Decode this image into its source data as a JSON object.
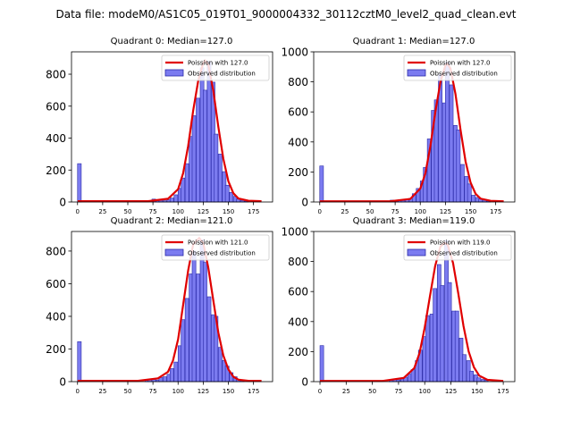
{
  "figure_title": "Data file: modeM0/AS1C05_019T01_9000004332_30112cztM0_level2_quad_clean.evt",
  "colors": {
    "bar_fill": "#7b7bf0",
    "bar_edge": "#2a2aa8",
    "poisson_line": "#e00000"
  },
  "chart_data": [
    {
      "type": "bar",
      "title": "Quadrant 0: Median=127.0",
      "median": 127.0,
      "xlim": [
        -6,
        194
      ],
      "ylim": [
        0,
        940
      ],
      "xticks": [
        0,
        25,
        50,
        75,
        100,
        125,
        150,
        175
      ],
      "yticks": [
        0,
        200,
        400,
        600,
        800
      ],
      "legend": [
        "Poission with 127.0",
        "Observed distribution"
      ],
      "legend_loc": "upper right",
      "bin_width": 3.7,
      "bins": [
        [
          0,
          240
        ],
        [
          74,
          18
        ],
        [
          78,
          15
        ],
        [
          81,
          10
        ],
        [
          85,
          8
        ],
        [
          89,
          14
        ],
        [
          92,
          25
        ],
        [
          96,
          45
        ],
        [
          100,
          85
        ],
        [
          103,
          150
        ],
        [
          107,
          240
        ],
        [
          111,
          410
        ],
        [
          114,
          540
        ],
        [
          118,
          650
        ],
        [
          122,
          840
        ],
        [
          125,
          700
        ],
        [
          129,
          880
        ],
        [
          133,
          750
        ],
        [
          136,
          425
        ],
        [
          140,
          300
        ],
        [
          144,
          190
        ],
        [
          147,
          105
        ],
        [
          151,
          60
        ],
        [
          155,
          35
        ],
        [
          158,
          18
        ],
        [
          162,
          10
        ],
        [
          166,
          5
        ]
      ],
      "poisson": [
        [
          0,
          5
        ],
        [
          70,
          5
        ],
        [
          90,
          20
        ],
        [
          100,
          80
        ],
        [
          105,
          180
        ],
        [
          110,
          350
        ],
        [
          115,
          570
        ],
        [
          120,
          760
        ],
        [
          125,
          870
        ],
        [
          127,
          885
        ],
        [
          130,
          860
        ],
        [
          135,
          700
        ],
        [
          140,
          470
        ],
        [
          145,
          270
        ],
        [
          150,
          130
        ],
        [
          155,
          55
        ],
        [
          160,
          22
        ],
        [
          170,
          8
        ],
        [
          183,
          5
        ]
      ]
    },
    {
      "type": "bar",
      "title": "Quadrant 1: Median=127.0",
      "median": 127.0,
      "xlim": [
        -6,
        194
      ],
      "ylim": [
        0,
        1000
      ],
      "xticks": [
        0,
        25,
        50,
        75,
        100,
        125,
        150,
        175
      ],
      "yticks": [
        0,
        200,
        400,
        600,
        800,
        1000
      ],
      "legend": [
        "Poission with 127.0",
        "Observed distribution"
      ],
      "legend_loc": "upper right",
      "bin_width": 3.7,
      "bins": [
        [
          0,
          240
        ],
        [
          70,
          12
        ],
        [
          74,
          10
        ],
        [
          78,
          15
        ],
        [
          81,
          10
        ],
        [
          85,
          18
        ],
        [
          89,
          25
        ],
        [
          92,
          55
        ],
        [
          96,
          90
        ],
        [
          100,
          140
        ],
        [
          103,
          230
        ],
        [
          107,
          420
        ],
        [
          111,
          610
        ],
        [
          114,
          680
        ],
        [
          118,
          850
        ],
        [
          122,
          660
        ],
        [
          125,
          930
        ],
        [
          129,
          780
        ],
        [
          133,
          510
        ],
        [
          136,
          480
        ],
        [
          140,
          250
        ],
        [
          144,
          170
        ],
        [
          147,
          120
        ],
        [
          151,
          45
        ],
        [
          155,
          30
        ],
        [
          158,
          20
        ],
        [
          162,
          12
        ],
        [
          166,
          6
        ]
      ],
      "poisson": [
        [
          0,
          5
        ],
        [
          70,
          5
        ],
        [
          90,
          20
        ],
        [
          100,
          90
        ],
        [
          105,
          190
        ],
        [
          110,
          370
        ],
        [
          115,
          600
        ],
        [
          120,
          800
        ],
        [
          125,
          910
        ],
        [
          127,
          920
        ],
        [
          130,
          890
        ],
        [
          135,
          720
        ],
        [
          140,
          480
        ],
        [
          145,
          270
        ],
        [
          150,
          130
        ],
        [
          155,
          55
        ],
        [
          160,
          22
        ],
        [
          170,
          8
        ],
        [
          183,
          5
        ]
      ]
    },
    {
      "type": "bar",
      "title": "Quadrant 2: Median=121.0",
      "median": 121.0,
      "xlim": [
        -6,
        194
      ],
      "ylim": [
        0,
        920
      ],
      "xticks": [
        0,
        25,
        50,
        75,
        100,
        125,
        150,
        175
      ],
      "yticks": [
        0,
        200,
        400,
        600,
        800
      ],
      "legend": [
        "Poission with 121.0",
        "Observed distribution"
      ],
      "legend_loc": "upper right",
      "bin_width": 3.7,
      "bins": [
        [
          0,
          245
        ],
        [
          67,
          12
        ],
        [
          70,
          15
        ],
        [
          74,
          18
        ],
        [
          78,
          10
        ],
        [
          81,
          25
        ],
        [
          85,
          30
        ],
        [
          89,
          45
        ],
        [
          92,
          80
        ],
        [
          96,
          120
        ],
        [
          100,
          220
        ],
        [
          103,
          380
        ],
        [
          107,
          510
        ],
        [
          111,
          660
        ],
        [
          114,
          800
        ],
        [
          118,
          660
        ],
        [
          122,
          870
        ],
        [
          125,
          730
        ],
        [
          129,
          520
        ],
        [
          133,
          410
        ],
        [
          136,
          400
        ],
        [
          140,
          210
        ],
        [
          144,
          130
        ],
        [
          147,
          95
        ],
        [
          151,
          55
        ],
        [
          155,
          30
        ],
        [
          158,
          15
        ],
        [
          162,
          8
        ]
      ],
      "poisson": [
        [
          0,
          5
        ],
        [
          60,
          5
        ],
        [
          80,
          20
        ],
        [
          90,
          60
        ],
        [
          95,
          130
        ],
        [
          100,
          260
        ],
        [
          105,
          470
        ],
        [
          110,
          680
        ],
        [
          115,
          840
        ],
        [
          121,
          880
        ],
        [
          125,
          850
        ],
        [
          130,
          700
        ],
        [
          135,
          500
        ],
        [
          140,
          300
        ],
        [
          145,
          160
        ],
        [
          150,
          75
        ],
        [
          155,
          30
        ],
        [
          160,
          12
        ],
        [
          170,
          5
        ],
        [
          183,
          5
        ]
      ]
    },
    {
      "type": "bar",
      "title": "Quadrant 3: Median=119.0",
      "median": 119.0,
      "xlim": [
        -6,
        186
      ],
      "ylim": [
        0,
        1000
      ],
      "xticks": [
        0,
        25,
        50,
        75,
        100,
        125,
        150,
        175
      ],
      "yticks": [
        0,
        200,
        400,
        600,
        800,
        1000
      ],
      "legend": [
        "Poission with 119.0",
        "Observed distribution"
      ],
      "legend_loc": "upper right",
      "bin_width": 3.5,
      "bins": [
        [
          0,
          240
        ],
        [
          66,
          10
        ],
        [
          70,
          15
        ],
        [
          73,
          12
        ],
        [
          77,
          18
        ],
        [
          80,
          30
        ],
        [
          84,
          50
        ],
        [
          87,
          80
        ],
        [
          91,
          140
        ],
        [
          94,
          210
        ],
        [
          98,
          300
        ],
        [
          101,
          440
        ],
        [
          105,
          450
        ],
        [
          108,
          620
        ],
        [
          112,
          780
        ],
        [
          115,
          640
        ],
        [
          119,
          940
        ],
        [
          122,
          660
        ],
        [
          126,
          470
        ],
        [
          129,
          470
        ],
        [
          133,
          290
        ],
        [
          136,
          180
        ],
        [
          140,
          140
        ],
        [
          143,
          70
        ],
        [
          147,
          45
        ],
        [
          150,
          25
        ],
        [
          154,
          15
        ],
        [
          157,
          8
        ]
      ],
      "poisson": [
        [
          0,
          5
        ],
        [
          60,
          5
        ],
        [
          80,
          25
        ],
        [
          90,
          90
        ],
        [
          95,
          190
        ],
        [
          100,
          360
        ],
        [
          105,
          570
        ],
        [
          110,
          770
        ],
        [
          115,
          900
        ],
        [
          119,
          925
        ],
        [
          122,
          910
        ],
        [
          127,
          790
        ],
        [
          132,
          590
        ],
        [
          137,
          370
        ],
        [
          142,
          200
        ],
        [
          147,
          95
        ],
        [
          152,
          40
        ],
        [
          160,
          12
        ],
        [
          175,
          5
        ]
      ]
    }
  ]
}
